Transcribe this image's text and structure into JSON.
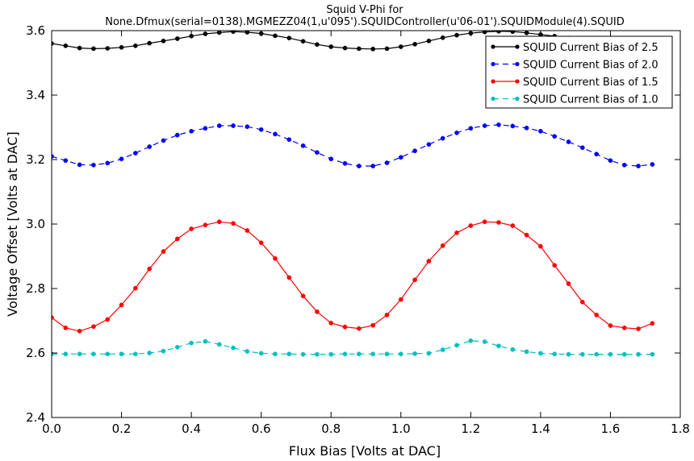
{
  "chart_data": {
    "type": "line",
    "title": "Squid V-Phi for",
    "subtitle": "None.Dfmux(serial=0138).MGMEZZ04(1,u'095').SQUIDController(u'06-01').SQUIDModule(4).SQUID",
    "xlabel": "Flux Bias [Volts at DAC]",
    "ylabel": "Voltage Offset [Volts at DAC]",
    "xlim": [
      0.0,
      1.8
    ],
    "ylim": [
      2.4,
      3.6
    ],
    "xticks": [
      "0.0",
      "0.2",
      "0.4",
      "0.6",
      "0.8",
      "1.0",
      "1.2",
      "1.4",
      "1.6",
      "1.8"
    ],
    "yticks": [
      "2.4",
      "2.6",
      "2.8",
      "3.0",
      "3.2",
      "3.4",
      "3.6"
    ],
    "grid": false,
    "legend_position": "top-right",
    "x": [
      0.0,
      0.04,
      0.08,
      0.12,
      0.16,
      0.2,
      0.24,
      0.28,
      0.32,
      0.36,
      0.4,
      0.44,
      0.48,
      0.52,
      0.56,
      0.6,
      0.64,
      0.68,
      0.72,
      0.76,
      0.8,
      0.84,
      0.88,
      0.92,
      0.96,
      1.0,
      1.04,
      1.08,
      1.12,
      1.16,
      1.2,
      1.24,
      1.28,
      1.32,
      1.36,
      1.4,
      1.44,
      1.48,
      1.52,
      1.56,
      1.6,
      1.64,
      1.68,
      1.72
    ],
    "series": [
      {
        "name": "SQUID Current Bias of 2.5",
        "color": "#000000",
        "dashed": false,
        "values": [
          3.56,
          3.553,
          3.546,
          3.544,
          3.545,
          3.548,
          3.553,
          3.561,
          3.568,
          3.575,
          3.583,
          3.59,
          3.594,
          3.597,
          3.595,
          3.591,
          3.584,
          3.577,
          3.567,
          3.557,
          3.55,
          3.546,
          3.544,
          3.543,
          3.544,
          3.55,
          3.558,
          3.568,
          3.578,
          3.586,
          3.592,
          3.596,
          3.598,
          3.597,
          3.593,
          3.588,
          3.583,
          3.577,
          3.57,
          3.562,
          3.556,
          3.551,
          3.548,
          3.548
        ]
      },
      {
        "name": "SQUID Current Bias of 2.0",
        "color": "#0000ff",
        "dashed": true,
        "values": [
          3.21,
          3.197,
          3.184,
          3.183,
          3.189,
          3.202,
          3.22,
          3.24,
          3.259,
          3.276,
          3.288,
          3.297,
          3.305,
          3.305,
          3.302,
          3.293,
          3.279,
          3.262,
          3.243,
          3.222,
          3.202,
          3.188,
          3.18,
          3.18,
          3.19,
          3.207,
          3.227,
          3.247,
          3.266,
          3.283,
          3.297,
          3.305,
          3.308,
          3.304,
          3.298,
          3.288,
          3.272,
          3.255,
          3.237,
          3.217,
          3.197,
          3.183,
          3.18,
          3.185
        ]
      },
      {
        "name": "SQUID Current Bias of 1.5",
        "color": "#ff0000",
        "dashed": false,
        "values": [
          2.71,
          2.678,
          2.668,
          2.682,
          2.704,
          2.749,
          2.801,
          2.861,
          2.915,
          2.954,
          2.985,
          2.997,
          3.007,
          3.002,
          2.98,
          2.942,
          2.893,
          2.834,
          2.777,
          2.728,
          2.693,
          2.681,
          2.676,
          2.686,
          2.718,
          2.766,
          2.827,
          2.885,
          2.933,
          2.973,
          2.995,
          3.007,
          3.005,
          2.995,
          2.966,
          2.931,
          2.872,
          2.815,
          2.758,
          2.718,
          2.685,
          2.678,
          2.675,
          2.692
        ]
      },
      {
        "name": "SQUID Current Bias of 1.0",
        "color": "#00bfbf",
        "dashed": true,
        "values": [
          2.597,
          2.597,
          2.597,
          2.597,
          2.597,
          2.597,
          2.597,
          2.6,
          2.606,
          2.618,
          2.631,
          2.636,
          2.627,
          2.616,
          2.605,
          2.599,
          2.597,
          2.597,
          2.596,
          2.596,
          2.596,
          2.597,
          2.597,
          2.597,
          2.597,
          2.597,
          2.598,
          2.599,
          2.61,
          2.624,
          2.638,
          2.635,
          2.622,
          2.611,
          2.604,
          2.599,
          2.597,
          2.596,
          2.596,
          2.596,
          2.596,
          2.596,
          2.596,
          2.596
        ]
      }
    ]
  }
}
